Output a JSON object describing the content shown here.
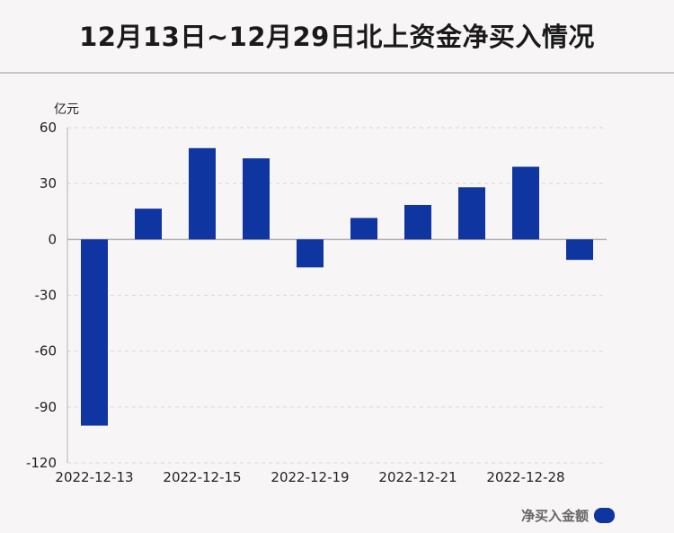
{
  "title": "12月13日~12月29日北上资金净买入情况",
  "unit_label": "亿元",
  "legend_label": "净买入金额",
  "colors": {
    "bar": "#0f35a0",
    "grid": "#dcd8d9",
    "axis": "#b5b2b3",
    "background": "#f8f5f6"
  },
  "chart_data": {
    "type": "bar",
    "ylabel": "亿元",
    "ylim": [
      -120,
      60
    ],
    "yticks": [
      60,
      30,
      0,
      -30,
      -60,
      -90,
      -120
    ],
    "grid": true,
    "legend_position": "bottom-right",
    "x_tick_labels": [
      "2022-12-13",
      "",
      "2022-12-15",
      "",
      "2022-12-19",
      "",
      "2022-12-21",
      "",
      "2022-12-28",
      ""
    ],
    "series": [
      {
        "values": [
          -100,
          16.5,
          49,
          43.5,
          -15,
          11.5,
          18.5,
          28,
          39,
          -11
        ]
      }
    ]
  }
}
